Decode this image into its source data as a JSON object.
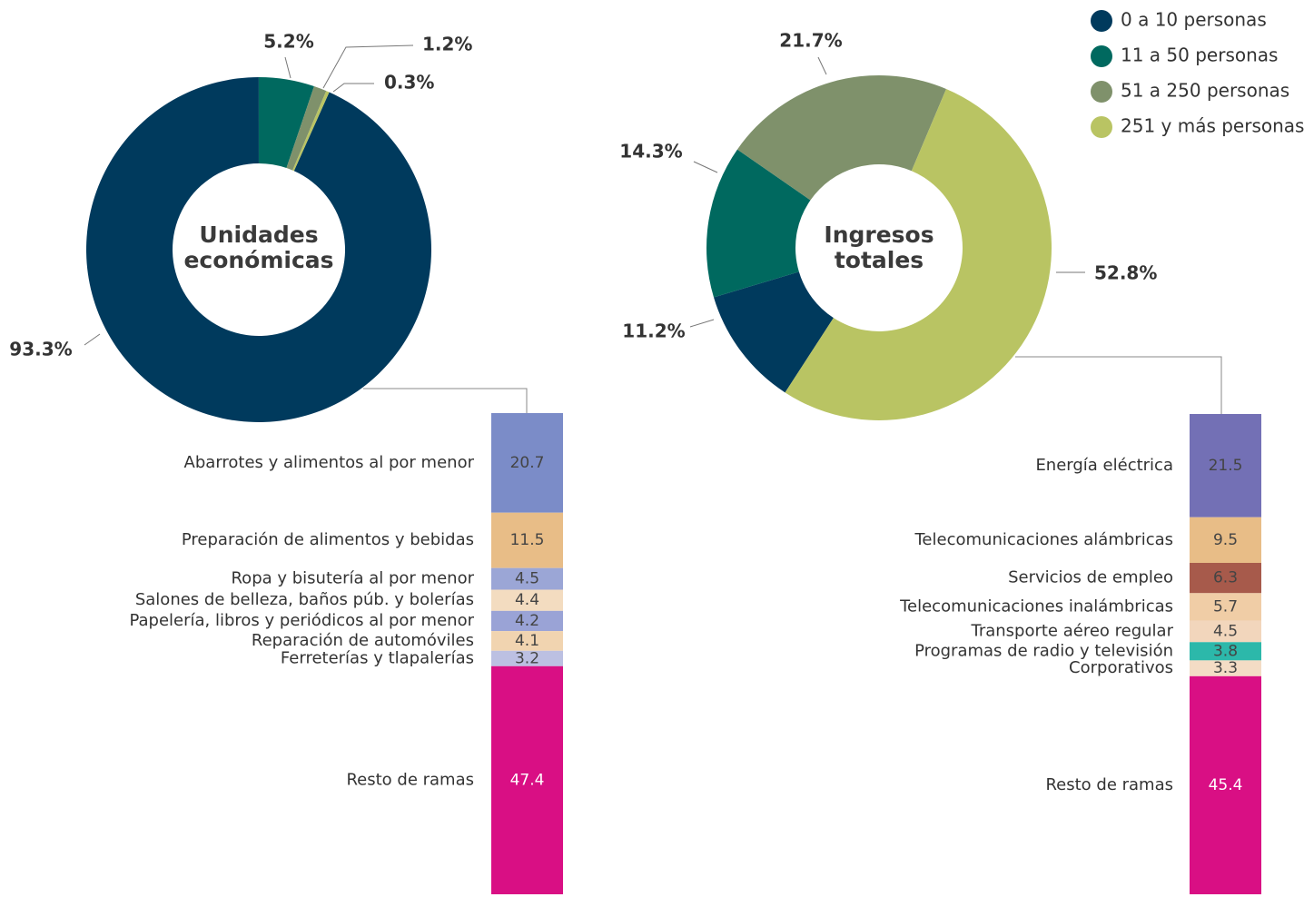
{
  "chart_data": [
    {
      "type": "pie",
      "title": "Unidades económicas",
      "values": [
        93.3,
        5.2,
        1.2,
        0.3
      ],
      "value_labels": [
        "93.3%",
        "5.2%",
        "1.2%",
        "0.3%"
      ],
      "colors": [
        "#003a5d",
        "#00695f",
        "#7f916b",
        "#b9c463"
      ]
    },
    {
      "type": "pie",
      "title": "Ingresos totales",
      "categories": [
        "0 a 10 personas",
        "11 a 50 personas",
        "51 a 250 personas",
        "251 y más personas"
      ],
      "values": [
        11.2,
        14.3,
        21.7,
        52.8
      ],
      "value_labels": [
        "11.2%",
        "14.3%",
        "21.7%",
        "52.8%"
      ],
      "colors": [
        "#003a5d",
        "#00695f",
        "#7f916b",
        "#b9c463"
      ],
      "legend": "top-right"
    },
    {
      "type": "bar",
      "categories": [
        "Abarrotes y alimentos al por menor",
        "Preparación de alimentos y bebidas",
        "Ropa y bisutería al por menor",
        "Salones de belleza, baños púb. y bolerías",
        "Papelería, libros y periódicos al por menor",
        "Reparación de automóviles",
        "Ferreterías y tlapalerías",
        "Resto de ramas"
      ],
      "values": [
        20.7,
        11.5,
        4.5,
        4.4,
        4.2,
        4.1,
        3.2,
        47.4
      ],
      "colors": [
        "#7b8cc8",
        "#e8bd87",
        "#9ba6d6",
        "#f3dcc0",
        "#9aa3d6",
        "#f1d4b0",
        "#bcc0e2",
        "#d90f84"
      ]
    },
    {
      "type": "bar",
      "categories": [
        "Energía eléctrica",
        "Telecomunicaciones alámbricas",
        "Servicios de empleo",
        "Telecomunicaciones inalámbricas",
        "Transporte aéreo regular",
        "Programas de radio y televisión",
        "Corporativos",
        "Resto de ramas"
      ],
      "values": [
        21.5,
        9.5,
        6.3,
        5.7,
        4.5,
        3.8,
        3.3,
        45.4
      ],
      "colors": [
        "#7370b5",
        "#e8bd87",
        "#a75a4b",
        "#f0cda6",
        "#f2d6bc",
        "#2cb8aa",
        "#f3dcc5",
        "#d90f84"
      ]
    }
  ]
}
